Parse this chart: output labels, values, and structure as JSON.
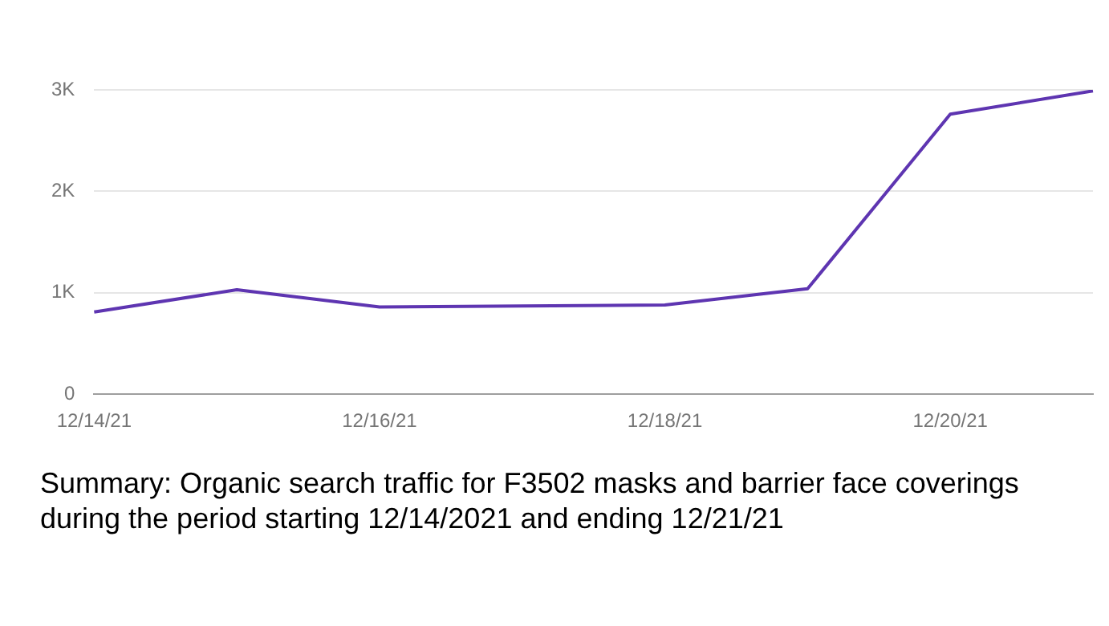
{
  "chart_data": {
    "type": "line",
    "categories": [
      "12/14/21",
      null,
      "12/16/21",
      null,
      "12/18/21",
      null,
      "12/20/21",
      null
    ],
    "series": [
      {
        "color": "#5e35b1",
        "values": [
          810,
          1030,
          860,
          870,
          880,
          1040,
          2760,
          2990
        ]
      }
    ],
    "ylim": [
      0,
      3000
    ],
    "yticks": [
      0,
      {
        "value": 1000,
        "label": "1K"
      },
      {
        "value": 2000,
        "label": "2K"
      },
      {
        "value": 3000,
        "label": "3K"
      }
    ],
    "grid": "y",
    "legend": false,
    "marker": "none",
    "annotations": [
      "Summary: Organic search traffic for F3502 masks and barrier face coverings during the period starting 12/14/2021 and ending 12/21/21"
    ]
  }
}
